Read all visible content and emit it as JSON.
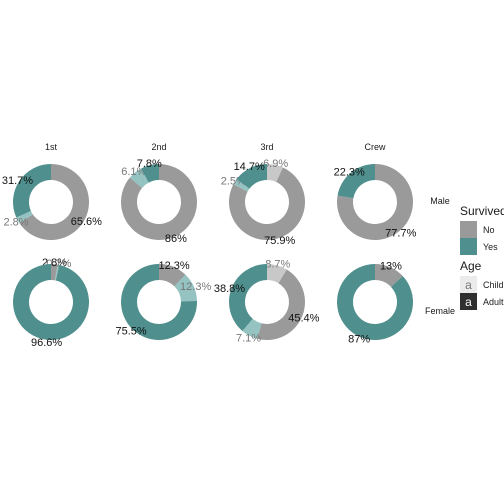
{
  "chart_data": {
    "type": "pie",
    "subtype": "donut-facet",
    "columns": [
      "1st",
      "2nd",
      "3rd",
      "Crew"
    ],
    "rows": [
      "Male",
      "Female"
    ],
    "colors": {
      "No_Child": "#c8c8c8",
      "No_Adult": "#9a9a9a",
      "Yes_Child": "#94c3c1",
      "Yes_Adult": "#4f8f8d",
      "label_child": "#777777",
      "label_adult": "#111111"
    },
    "panels": [
      {
        "row": "Male",
        "col": "1st",
        "slices": [
          {
            "survived": "No",
            "age": "Adult",
            "value": 65.6,
            "label": "65.6%"
          },
          {
            "survived": "Yes",
            "age": "Child",
            "value": 2.8,
            "label": "2.8%"
          },
          {
            "survived": "Yes",
            "age": "Adult",
            "value": 31.7,
            "label": "31.7%"
          }
        ]
      },
      {
        "row": "Male",
        "col": "2nd",
        "slices": [
          {
            "survived": "No",
            "age": "Adult",
            "value": 86,
            "label": "86%"
          },
          {
            "survived": "Yes",
            "age": "Child",
            "value": 6.1,
            "label": "6.1%"
          },
          {
            "survived": "Yes",
            "age": "Adult",
            "value": 7.8,
            "label": "7.8%"
          }
        ]
      },
      {
        "row": "Male",
        "col": "3rd",
        "slices": [
          {
            "survived": "No",
            "age": "Child",
            "value": 6.9,
            "label": "6.9%"
          },
          {
            "survived": "No",
            "age": "Adult",
            "value": 75.9,
            "label": "75.9%"
          },
          {
            "survived": "Yes",
            "age": "Child",
            "value": 2.5,
            "label": "2.5%"
          },
          {
            "survived": "Yes",
            "age": "Adult",
            "value": 14.7,
            "label": "14.7%"
          }
        ]
      },
      {
        "row": "Male",
        "col": "Crew",
        "slices": [
          {
            "survived": "No",
            "age": "Adult",
            "value": 77.7,
            "label": "77.7%"
          },
          {
            "survived": "Yes",
            "age": "Adult",
            "value": 22.3,
            "label": "22.3%"
          }
        ]
      },
      {
        "row": "Female",
        "col": "1st",
        "slices": [
          {
            "survived": "No",
            "age": "Adult",
            "value": 2.8,
            "label": "2.8%"
          },
          {
            "survived": "Yes",
            "age": "Child",
            "value": 0.7,
            "label": "0.7%"
          },
          {
            "survived": "Yes",
            "age": "Adult",
            "value": 96.6,
            "label": "96.6%"
          }
        ]
      },
      {
        "row": "Female",
        "col": "2nd",
        "slices": [
          {
            "survived": "No",
            "age": "Adult",
            "value": 12.3,
            "label": "12.3%"
          },
          {
            "survived": "Yes",
            "age": "Child",
            "value": 12.3,
            "label": "12.3%"
          },
          {
            "survived": "Yes",
            "age": "Adult",
            "value": 75.5,
            "label": "75.5%"
          }
        ]
      },
      {
        "row": "Female",
        "col": "3rd",
        "slices": [
          {
            "survived": "No",
            "age": "Child",
            "value": 8.7,
            "label": "8.7%"
          },
          {
            "survived": "No",
            "age": "Adult",
            "value": 45.4,
            "label": "45.4%"
          },
          {
            "survived": "Yes",
            "age": "Child",
            "value": 7.1,
            "label": "7.1%"
          },
          {
            "survived": "Yes",
            "age": "Adult",
            "value": 38.8,
            "label": "38.8%"
          }
        ]
      },
      {
        "row": "Female",
        "col": "Crew",
        "slices": [
          {
            "survived": "No",
            "age": "Adult",
            "value": 13,
            "label": "13%"
          },
          {
            "survived": "Yes",
            "age": "Adult",
            "value": 87,
            "label": "87%"
          }
        ]
      }
    ],
    "legend": {
      "placement": "right",
      "survived": {
        "title": "Survived",
        "items": [
          "No",
          "Yes"
        ]
      },
      "age": {
        "title": "Age",
        "items": [
          "Child",
          "Adult"
        ],
        "key_glyph": "a"
      }
    }
  }
}
